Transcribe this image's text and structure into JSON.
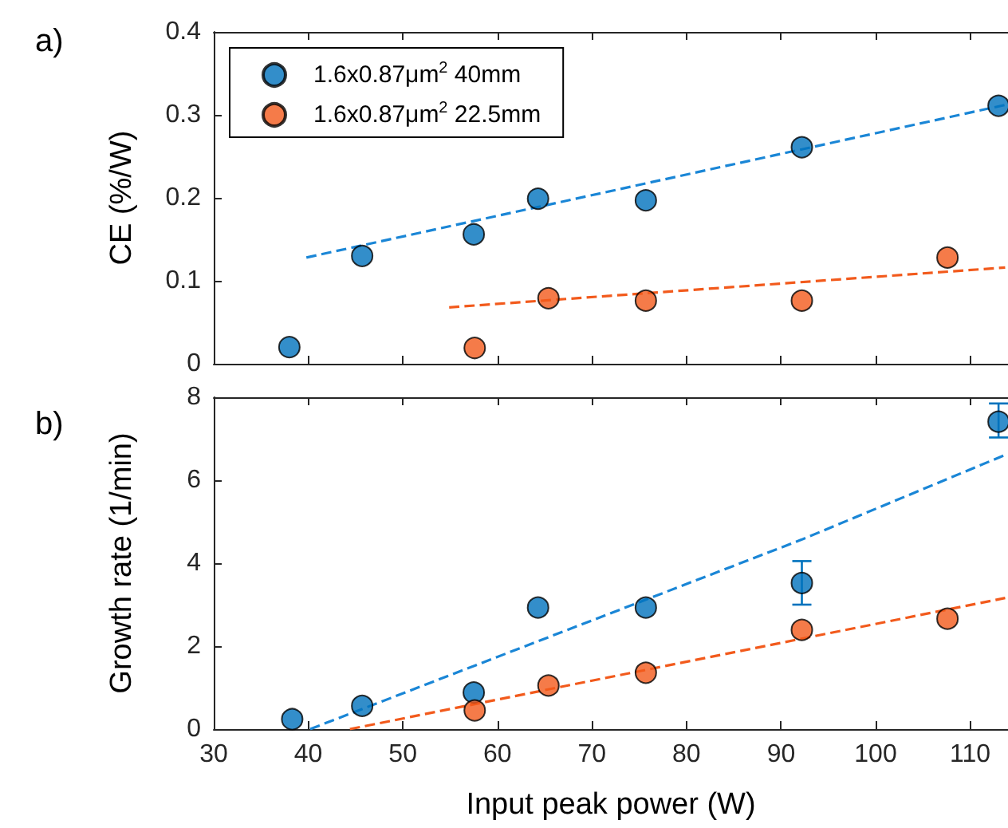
{
  "chart_data": [
    {
      "type": "scatter",
      "ylabel": "CE (%/W)",
      "annotations": [
        "a)"
      ],
      "xlim": [
        30,
        114
      ],
      "xticks": [
        30,
        40,
        50,
        60,
        70,
        80,
        90,
        100,
        110
      ],
      "ylim": [
        0,
        0.4
      ],
      "yticks": [
        0,
        0.1,
        0.2,
        0.3,
        0.4
      ],
      "tick_labels": "y",
      "grid": false,
      "legend": "top left",
      "series": [
        {
          "name": "1.6x0.87μm$^{2}$ 40mm",
          "marker": "circle",
          "color": "#0072bd",
          "x": [
            38.0,
            45.7,
            57.5,
            64.3,
            75.7,
            92.2,
            113.0
          ],
          "values": [
            0.02,
            0.13,
            0.156,
            0.199,
            0.197,
            0.261,
            0.311
          ]
        },
        {
          "name": "1.6x0.87μm$^{2}$ 22.5mm",
          "marker": "circle",
          "color": "#f25a1c",
          "x": [
            57.6,
            65.4,
            75.7,
            92.2,
            107.6
          ],
          "values": [
            0.019,
            0.079,
            0.076,
            0.076,
            0.128
          ]
        },
        {
          "type": "line",
          "marker": "none",
          "color": "#1a86d6",
          "line_style": "dashed",
          "x": [
            39.8,
            113.7
          ],
          "values": [
            0.128,
            0.312
          ]
        },
        {
          "type": "line",
          "marker": "none",
          "color": "#f25a1c",
          "line_style": "dashed",
          "x": [
            54.9,
            113.7
          ],
          "values": [
            0.068,
            0.116
          ]
        }
      ]
    },
    {
      "type": "scatter",
      "xlabel": "Input peak power (W)",
      "ylabel": "Growth rate (1/min)",
      "annotations": [
        "b)"
      ],
      "xlim": [
        30,
        114
      ],
      "xticks": [
        30,
        40,
        50,
        60,
        70,
        80,
        90,
        100,
        110
      ],
      "ylim": [
        0,
        8
      ],
      "yticks": [
        0,
        2,
        4,
        6,
        8
      ],
      "grid": false,
      "series": [
        {
          "color": "#0072bd",
          "marker": "circle",
          "x": [
            38.3,
            45.7,
            57.5,
            64.3,
            75.7,
            92.2,
            113.0
          ],
          "values": [
            0.24,
            0.56,
            0.88,
            2.93,
            2.93,
            3.52,
            7.41
          ],
          "errors": [
            null,
            null,
            null,
            null,
            null,
            [
              3.0,
              4.05
            ],
            [
              7.03,
              7.85
            ]
          ]
        },
        {
          "color": "#f25a1c",
          "marker": "circle",
          "x": [
            57.6,
            65.4,
            75.7,
            92.2,
            107.6
          ],
          "values": [
            0.45,
            1.05,
            1.36,
            2.39,
            2.66
          ]
        },
        {
          "type": "line",
          "marker": "none",
          "color": "#1a86d6",
          "line_style": "dashed",
          "x": [
            40.2,
            92.2,
            113.7
          ],
          "values": [
            0,
            4.57,
            6.61
          ]
        },
        {
          "type": "line",
          "marker": "none",
          "color": "#f25a1c",
          "line_style": "dashed",
          "x": [
            44.4,
            113.7
          ],
          "values": [
            0,
            3.16
          ]
        }
      ]
    }
  ]
}
